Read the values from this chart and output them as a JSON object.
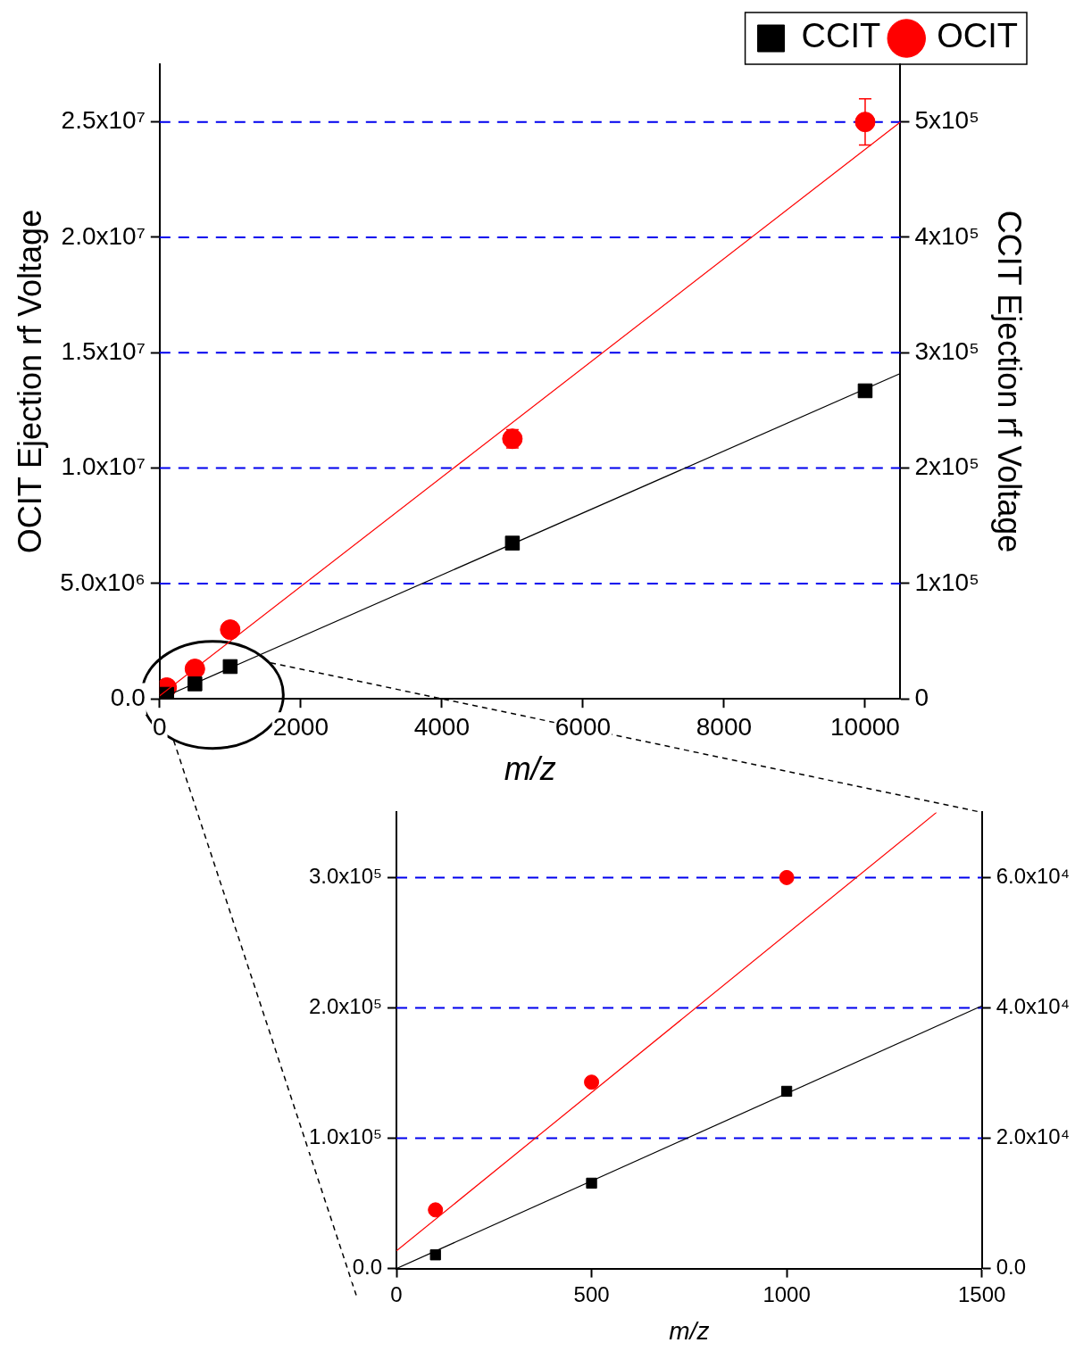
{
  "chart_data": [
    {
      "type": "scatter",
      "xlabel": "m/z",
      "ylabel": "OCIT Ejection rf Voltage",
      "y2label": "CCIT Ejection rf Voltage",
      "xlim": [
        0,
        10500
      ],
      "xticks": [
        0,
        2000,
        4000,
        6000,
        8000,
        10000
      ],
      "ylim": [
        0,
        27500000
      ],
      "yticks": [
        {
          "value": 0,
          "label": "0.0"
        },
        {
          "value": 5000000,
          "label": "5.0x10⁶"
        },
        {
          "value": 10000000,
          "label": "1.0x10⁷"
        },
        {
          "value": 15000000,
          "label": "1.5x10⁷"
        },
        {
          "value": 20000000,
          "label": "2.0x10⁷"
        },
        {
          "value": 25000000,
          "label": "2.5x10⁷"
        }
      ],
      "y2lim": [
        0,
        550000
      ],
      "y2ticks": [
        0,
        {
          "value": 100000,
          "label": "1x10⁵"
        },
        {
          "value": 200000,
          "label": "2x10⁵"
        },
        {
          "value": 300000,
          "label": "3x10⁵"
        },
        {
          "value": 400000,
          "label": "4x10⁵"
        },
        {
          "value": 500000,
          "label": "5x10⁵"
        }
      ],
      "grid": "y",
      "legend": "top right",
      "series": [
        {
          "name": "CCIT",
          "type": "scatter",
          "axis": "y2",
          "color": "#000000",
          "marker": "square",
          "x": [
            100,
            500,
            1000,
            5000,
            10000
          ],
          "values": [
            4000,
            13000,
            28000,
            135000,
            267000
          ]
        },
        {
          "name": "OCIT",
          "type": "scatter",
          "color": "#ff0000",
          "marker": "circle",
          "x": [
            100,
            500,
            1000,
            5000,
            10000
          ],
          "values": [
            490000,
            1300000,
            3000000,
            11270000,
            25000000
          ],
          "errors": [
            null,
            null,
            null,
            400000,
            1000000
          ]
        },
        {
          "type": "line",
          "axis": "y2",
          "color": "#000000",
          "x": [
            0,
            10500
          ],
          "values": [
            0,
            282000
          ]
        },
        {
          "type": "line",
          "color": "#ff0000",
          "x": [
            0,
            10500
          ],
          "values": [
            130000,
            25000000
          ]
        }
      ]
    },
    {
      "type": "scatter",
      "xlabel": "m/z",
      "xlim": [
        0,
        1500
      ],
      "xticks": [
        0,
        500,
        1000,
        1500
      ],
      "ylim": [
        0,
        350000
      ],
      "yticks": [
        {
          "value": 0,
          "label": "0.0"
        },
        {
          "value": 100000,
          "label": "1.0x10⁵"
        },
        {
          "value": 200000,
          "label": "2.0x10⁵"
        },
        {
          "value": 300000,
          "label": "3.0x10⁵"
        }
      ],
      "y2lim": [
        0,
        70000
      ],
      "y2ticks": [
        {
          "value": 0,
          "label": "0.0"
        },
        {
          "value": 20000,
          "label": "2.0x10⁴"
        },
        {
          "value": 40000,
          "label": "4.0x10⁴"
        },
        {
          "value": 60000,
          "label": "6.0x10⁴"
        }
      ],
      "grid": "y",
      "series": [
        {
          "type": "scatter",
          "axis": "y2",
          "color": "#000000",
          "marker": "square",
          "x": [
            100,
            500,
            1000
          ],
          "values": [
            2100,
            13100,
            27200
          ]
        },
        {
          "type": "scatter",
          "color": "#ff0000",
          "marker": "circle",
          "x": [
            100,
            500,
            1000
          ],
          "values": [
            45000,
            143000,
            300000
          ]
        },
        {
          "type": "line",
          "axis": "y2",
          "color": "#000000",
          "x": [
            0,
            1500
          ],
          "values": [
            0,
            40300
          ]
        },
        {
          "type": "line",
          "color": "#ff0000",
          "x": [
            0,
            1384
          ],
          "values": [
            13500,
            350000
          ]
        }
      ]
    }
  ]
}
